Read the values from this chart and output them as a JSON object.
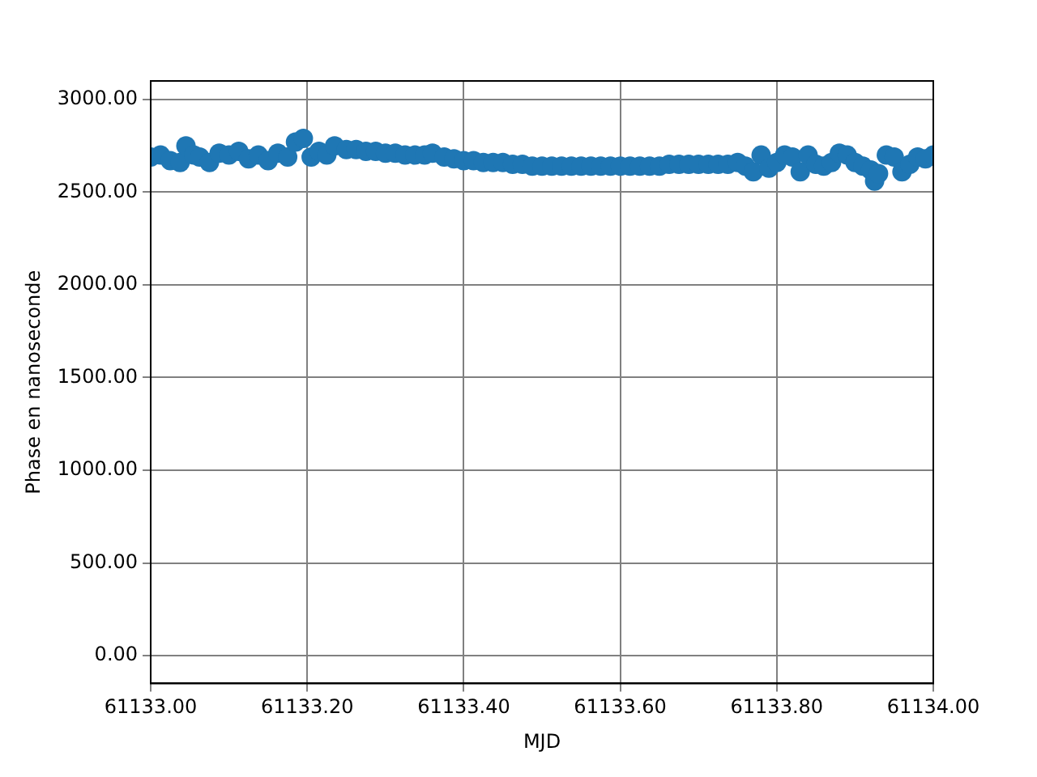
{
  "chart_data": {
    "type": "scatter",
    "xlabel": "MJD",
    "ylabel": "Phase en nanoseconde",
    "marker": "circle",
    "grid": true,
    "legend": false,
    "xlim": [
      61133.0,
      61134.0
    ],
    "xticks": [
      {
        "value": 61133.0,
        "label": "61133.00"
      },
      {
        "value": 61133.2,
        "label": "61133.20"
      },
      {
        "value": 61133.4,
        "label": "61133.40"
      },
      {
        "value": 61133.6,
        "label": "61133.60"
      },
      {
        "value": 61133.8,
        "label": "61133.80"
      },
      {
        "value": 61134.0,
        "label": "61134.00"
      }
    ],
    "ylim": [
      -150,
      3100
    ],
    "yticks": [
      {
        "value": 0,
        "label": "0.00"
      },
      {
        "value": 500,
        "label": "500.00"
      },
      {
        "value": 1000,
        "label": "1000.00"
      },
      {
        "value": 1500,
        "label": "1500.00"
      },
      {
        "value": 2000,
        "label": "2000.00"
      },
      {
        "value": 2500,
        "label": "2500.00"
      },
      {
        "value": 3000,
        "label": "3000.00"
      }
    ],
    "series": [
      {
        "color": "#1f77b4",
        "x": [
          61133.0,
          61133.0125,
          61133.025,
          61133.0375,
          61133.045,
          61133.055,
          61133.0625,
          61133.075,
          61133.0875,
          61133.1,
          61133.1125,
          61133.125,
          61133.1375,
          61133.15,
          61133.1625,
          61133.175,
          61133.185,
          61133.195,
          61133.205,
          61133.215,
          61133.225,
          61133.235,
          61133.25,
          61133.2625,
          61133.275,
          61133.2875,
          61133.3,
          61133.3125,
          61133.325,
          61133.3375,
          61133.35,
          61133.36,
          61133.375,
          61133.3875,
          61133.4,
          61133.4125,
          61133.425,
          61133.4375,
          61133.45,
          61133.4625,
          61133.475,
          61133.4875,
          61133.5,
          61133.5125,
          61133.525,
          61133.5375,
          61133.55,
          61133.5625,
          61133.575,
          61133.5875,
          61133.6,
          61133.6125,
          61133.625,
          61133.6375,
          61133.65,
          61133.6625,
          61133.675,
          61133.6875,
          61133.7,
          61133.7125,
          61133.725,
          61133.7375,
          61133.75,
          61133.76,
          61133.77,
          61133.78,
          61133.79,
          61133.8,
          61133.81,
          61133.82,
          61133.83,
          61133.84,
          61133.85,
          61133.86,
          61133.87,
          61133.88,
          61133.89,
          61133.9,
          61133.91,
          61133.92,
          61133.925,
          61133.93,
          61133.94,
          61133.95,
          61133.96,
          61133.97,
          61133.98,
          61133.99,
          61134.0
        ],
        "values": [
          2690,
          2700,
          2670,
          2660,
          2750,
          2700,
          2690,
          2660,
          2710,
          2700,
          2720,
          2680,
          2700,
          2670,
          2710,
          2690,
          2770,
          2790,
          2690,
          2720,
          2700,
          2750,
          2730,
          2730,
          2720,
          2720,
          2710,
          2710,
          2700,
          2700,
          2700,
          2710,
          2690,
          2680,
          2670,
          2670,
          2660,
          2660,
          2660,
          2650,
          2650,
          2640,
          2640,
          2640,
          2640,
          2640,
          2640,
          2640,
          2640,
          2640,
          2640,
          2640,
          2640,
          2640,
          2640,
          2650,
          2650,
          2650,
          2650,
          2650,
          2650,
          2650,
          2660,
          2640,
          2610,
          2700,
          2630,
          2660,
          2700,
          2690,
          2610,
          2700,
          2650,
          2640,
          2660,
          2710,
          2700,
          2660,
          2640,
          2620,
          2560,
          2600,
          2700,
          2690,
          2610,
          2650,
          2690,
          2680,
          2700
        ]
      }
    ]
  }
}
